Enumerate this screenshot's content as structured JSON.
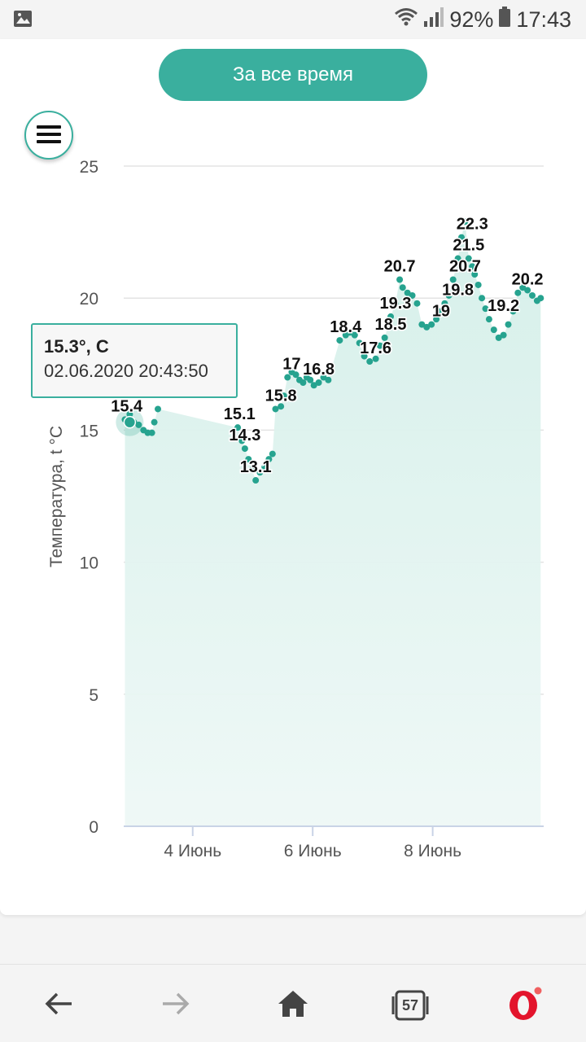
{
  "status_bar": {
    "battery_percent": "92%",
    "time": "17:43",
    "icons": [
      "image-icon",
      "wifi-icon",
      "signal-icon",
      "battery-icon"
    ]
  },
  "header": {
    "period_button_label": "За все время"
  },
  "tooltip": {
    "value": "15.3°, C",
    "datetime": "02.06.2020 20:43:50"
  },
  "chart_data": {
    "type": "area",
    "ylabel": "Температура, t °C",
    "ylim": [
      0,
      25
    ],
    "yticks": [
      "0",
      "5",
      "10",
      "15",
      "20",
      "25"
    ],
    "xticks": [
      {
        "day": 4,
        "label": "4 Июнь"
      },
      {
        "day": 6,
        "label": "6 Июнь"
      },
      {
        "day": 8,
        "label": "8 Июнь"
      }
    ],
    "xlim": [
      2.85,
      9.85
    ],
    "grid": true,
    "fill_color": "#e4f5f1",
    "point_color": "#26a38f",
    "x": [
      2.87,
      2.95,
      3.02,
      3.1,
      3.18,
      3.25,
      3.32,
      3.36,
      3.42,
      4.75,
      4.82,
      4.87,
      4.93,
      4.99,
      5.05,
      5.12,
      5.2,
      5.27,
      5.33,
      5.38,
      5.47,
      5.52,
      5.58,
      5.65,
      5.72,
      5.78,
      5.84,
      5.9,
      5.96,
      6.02,
      6.1,
      6.18,
      6.26,
      6.45,
      6.55,
      6.62,
      6.7,
      6.78,
      6.86,
      6.95,
      7.05,
      7.12,
      7.2,
      7.3,
      7.38,
      7.45,
      7.5,
      7.58,
      7.66,
      7.74,
      7.82,
      7.9,
      7.98,
      8.06,
      8.14,
      8.2,
      8.27,
      8.34,
      8.42,
      8.48,
      8.54,
      8.6,
      8.66,
      8.7,
      8.76,
      8.82,
      8.88,
      8.94,
      9.02,
      9.1,
      9.18,
      9.26,
      9.34,
      9.42,
      9.5,
      9.58,
      9.66,
      9.74,
      9.8
    ],
    "values": [
      15.4,
      15.6,
      15.3,
      15.2,
      15.0,
      14.9,
      14.9,
      15.3,
      15.8,
      15.1,
      14.6,
      14.3,
      13.9,
      13.5,
      13.1,
      13.4,
      13.6,
      13.9,
      14.1,
      15.8,
      15.9,
      16.3,
      17.0,
      17.2,
      17.1,
      16.9,
      16.8,
      17.0,
      16.9,
      16.7,
      16.8,
      17.0,
      16.9,
      18.4,
      18.6,
      18.7,
      18.6,
      18.3,
      17.8,
      17.6,
      17.7,
      18.2,
      18.5,
      19.3,
      19.8,
      20.7,
      20.4,
      20.2,
      20.1,
      19.8,
      19.0,
      18.9,
      19.0,
      19.2,
      19.5,
      19.8,
      20.1,
      20.7,
      21.5,
      22.3,
      22.9,
      21.5,
      21.2,
      20.9,
      20.5,
      20.0,
      19.6,
      19.2,
      18.8,
      18.5,
      18.6,
      19.0,
      19.5,
      20.2,
      20.4,
      20.3,
      20.1,
      19.9,
      20.0
    ],
    "data_labels": [
      {
        "x": 2.9,
        "value": 15.4,
        "text": "15.4"
      },
      {
        "x": 4.78,
        "value": 15.1,
        "text": "15.1"
      },
      {
        "x": 4.87,
        "value": 14.3,
        "text": "14.3"
      },
      {
        "x": 5.05,
        "value": 13.1,
        "text": "13.1"
      },
      {
        "x": 5.47,
        "value": 15.8,
        "text": "15.8"
      },
      {
        "x": 5.65,
        "value": 17.0,
        "text": "17"
      },
      {
        "x": 6.1,
        "value": 16.8,
        "text": "16.8"
      },
      {
        "x": 6.55,
        "value": 18.4,
        "text": "18.4"
      },
      {
        "x": 7.05,
        "value": 17.6,
        "text": "17.6"
      },
      {
        "x": 7.3,
        "value": 18.5,
        "text": "18.5"
      },
      {
        "x": 7.38,
        "value": 19.3,
        "text": "19.3"
      },
      {
        "x": 7.45,
        "value": 20.7,
        "text": "20.7"
      },
      {
        "x": 8.14,
        "value": 19.0,
        "text": "19"
      },
      {
        "x": 8.42,
        "value": 19.8,
        "text": "19.8"
      },
      {
        "x": 8.54,
        "value": 20.7,
        "text": "20.7"
      },
      {
        "x": 8.6,
        "value": 21.5,
        "text": "21.5"
      },
      {
        "x": 8.66,
        "value": 22.3,
        "text": "22.3"
      },
      {
        "x": 9.18,
        "value": 19.2,
        "text": "19.2"
      },
      {
        "x": 9.58,
        "value": 20.2,
        "text": "20.2"
      }
    ],
    "highlight": {
      "x": 2.95,
      "value": 15.3
    }
  },
  "nav_bar": {
    "tabs_count": "57",
    "icons": [
      "back-arrow-icon",
      "forward-arrow-icon",
      "home-icon",
      "tabs-icon",
      "opera-icon"
    ]
  }
}
